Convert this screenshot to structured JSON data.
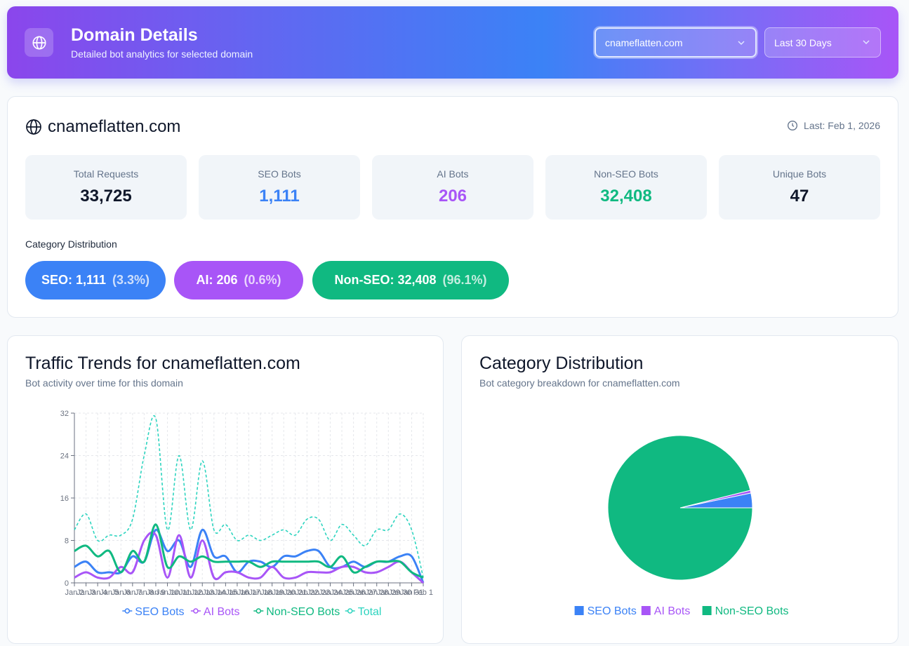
{
  "header": {
    "title": "Domain Details",
    "subtitle": "Detailed bot analytics for selected domain",
    "domain_select": "cnameflatten.com",
    "range_select": "Last 30 Days"
  },
  "domain": {
    "name": "cnameflatten.com",
    "last_seen": "Last: Feb 1, 2026"
  },
  "stats": [
    {
      "label": "Total Requests",
      "value": "33,725",
      "color": "#0f172a"
    },
    {
      "label": "SEO Bots",
      "value": "1,111",
      "color": "#3b82f6"
    },
    {
      "label": "AI Bots",
      "value": "206",
      "color": "#a855f7"
    },
    {
      "label": "Non-SEO Bots",
      "value": "32,408",
      "color": "#10b981"
    },
    {
      "label": "Unique Bots",
      "value": "47",
      "color": "#0f172a"
    }
  ],
  "category_distribution": {
    "label": "Category Distribution",
    "pills": [
      {
        "text": "SEO: 1,111",
        "pct": "(3.3%)",
        "color": "#3b82f6"
      },
      {
        "text": "AI: 206",
        "pct": "(0.6%)",
        "color": "#a855f7"
      },
      {
        "text": "Non-SEO: 32,408",
        "pct": "(96.1%)",
        "color": "#10b981"
      }
    ]
  },
  "trends": {
    "title": "Traffic Trends for cnameflatten.com",
    "subtitle": "Bot activity over time for this domain"
  },
  "category": {
    "title": "Category Distribution",
    "subtitle": "Bot category breakdown for cnameflatten.com"
  },
  "chart_data": [
    {
      "type": "line",
      "x": [
        "Jan 2",
        "Jan 3",
        "Jan 4",
        "Jan 5",
        "Jan 6",
        "Jan 7",
        "Jan 8",
        "Jan 9",
        "Jan 10",
        "Jan 11",
        "Jan 12",
        "Jan 13",
        "Jan 14",
        "Jan 15",
        "Jan 16",
        "Jan 17",
        "Jan 18",
        "Jan 19",
        "Jan 20",
        "Jan 21",
        "Jan 22",
        "Jan 23",
        "Jan 24",
        "Jan 25",
        "Jan 26",
        "Jan 27",
        "Jan 28",
        "Jan 29",
        "Jan 30",
        "Jan 31",
        "Feb 1"
      ],
      "ylim": [
        0,
        32
      ],
      "yticks": [
        "0",
        "8",
        "16",
        "24",
        "32"
      ],
      "grid": true,
      "legend": "bottom",
      "series": [
        {
          "name": "SEO Bots",
          "color": "#3b82f6",
          "dashed": false,
          "values": [
            3,
            4,
            2,
            2,
            2,
            5,
            4,
            10,
            6,
            8,
            3,
            10,
            5,
            5,
            2,
            4,
            4,
            3,
            5,
            5,
            6,
            6,
            3,
            3,
            4,
            3,
            4,
            4,
            5,
            5,
            0
          ]
        },
        {
          "name": "AI Bots",
          "color": "#a855f7",
          "dashed": false,
          "values": [
            1,
            2,
            1,
            1,
            3,
            2,
            8,
            9,
            1,
            9,
            1,
            8,
            1,
            2,
            2,
            1,
            1,
            3,
            1,
            1,
            2,
            2,
            2,
            3,
            3,
            2,
            2,
            3,
            4,
            2,
            0
          ]
        },
        {
          "name": "Non-SEO Bots",
          "color": "#10b981",
          "dashed": false,
          "values": [
            6,
            7,
            5,
            6,
            2,
            6,
            4,
            11,
            3,
            5,
            4,
            5,
            4,
            4,
            4,
            4,
            3,
            4,
            4,
            4,
            4,
            4,
            3,
            5,
            2,
            3,
            4,
            4,
            4,
            2,
            1
          ]
        },
        {
          "name": "Total",
          "color": "#2dd4bf",
          "dashed": true,
          "values": [
            10,
            13,
            8,
            9,
            9,
            12,
            24,
            31,
            10,
            24,
            10,
            23,
            10,
            11,
            8,
            9,
            8,
            9,
            10,
            9,
            12,
            12,
            8,
            11,
            9,
            7,
            10,
            10,
            13,
            10,
            1
          ]
        }
      ]
    },
    {
      "type": "pie",
      "categories": [
        "SEO Bots",
        "AI Bots",
        "Non-SEO Bots"
      ],
      "values": [
        1111,
        206,
        32408
      ],
      "colors": [
        "#3b82f6",
        "#a855f7",
        "#10b981"
      ],
      "legend": "bottom"
    }
  ]
}
